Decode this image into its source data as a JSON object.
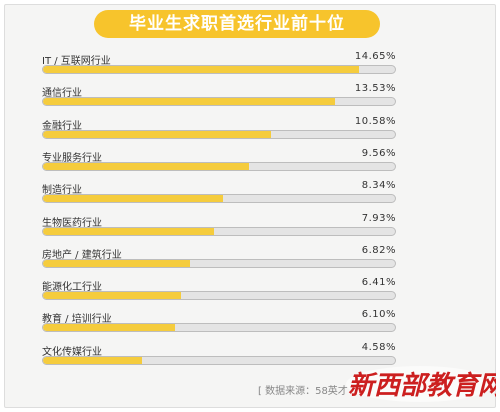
{
  "chart_data": {
    "type": "bar",
    "orientation": "horizontal",
    "title": "毕业生求职首选行业前十位",
    "categories": [
      "IT / 互联网行业",
      "通信行业",
      "金融行业",
      "专业服务行业",
      "制造行业",
      "生物医药行业",
      "房地产 / 建筑行业",
      "能源化工行业",
      "教育 / 培训行业",
      "文化传媒行业"
    ],
    "values": [
      14.65,
      13.53,
      10.58,
      9.56,
      8.34,
      7.93,
      6.82,
      6.41,
      6.1,
      4.58
    ],
    "value_labels": [
      "14.65%",
      "13.53%",
      "10.58%",
      "9.56%",
      "8.34%",
      "7.93%",
      "6.82%",
      "6.41%",
      "6.10%",
      "4.58%"
    ],
    "xlim": [
      0,
      16.4
    ],
    "grid": false,
    "legend": "none"
  },
  "source_text": "[ 数据来源：58英才",
  "logo": {
    "text": "新西部教育网",
    "color": "#cc1f1f"
  },
  "colors": {
    "bar_fill": "#f5cc3d",
    "track": "#e4e4e4",
    "title_bg": "#f7c42c"
  }
}
